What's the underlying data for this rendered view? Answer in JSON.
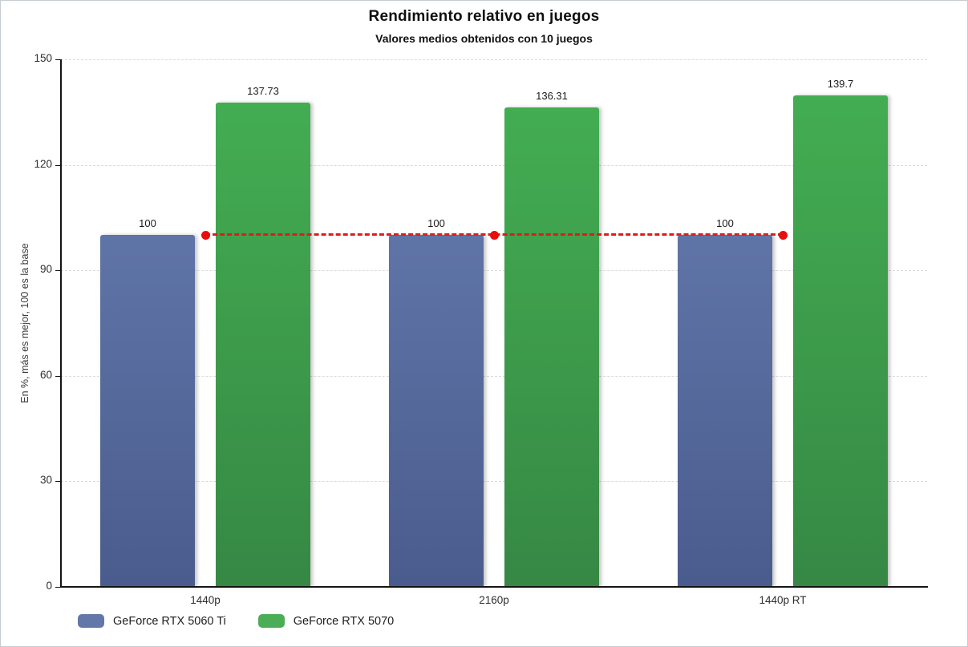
{
  "chart_data": {
    "type": "bar",
    "title": "Rendimiento relativo en juegos",
    "subtitle": "Valores medios obtenidos con 10 juegos",
    "categories": [
      "1440p",
      "2160p",
      "1440p RT"
    ],
    "series": [
      {
        "name": "GeForce RTX 5060 Ti",
        "values": [
          100,
          100,
          100
        ],
        "labels": [
          "100",
          "100",
          "100"
        ],
        "color": "#6377a9",
        "gradient_top": "#5f74a7",
        "gradient_bottom": "#4a5c8d"
      },
      {
        "name": "GeForce RTX 5070",
        "values": [
          137.73,
          136.31,
          139.7
        ],
        "labels": [
          "137.73",
          "136.31",
          "139.7"
        ],
        "color": "#4bae57",
        "gradient_top": "#43ad52",
        "gradient_bottom": "#368844"
      }
    ],
    "baseline_line": {
      "values": [
        100,
        100,
        100
      ],
      "color": "#df1b1b",
      "style": "dashed-with-points"
    },
    "xlabel": "",
    "ylabel": "En %, más es mejor, 100 es la base",
    "ylim": [
      0,
      150
    ],
    "yticks": [
      0,
      30,
      60,
      90,
      120,
      150
    ],
    "grid": true,
    "grid_style": "dashed-light-gray",
    "legend_position": "bottom-left",
    "colors": {
      "axis": "#141414",
      "gridline": "#dcdcdc",
      "baseline_red": "#df1b1b",
      "bar_blue": "#6377a9",
      "bar_green": "#4bae57"
    }
  }
}
